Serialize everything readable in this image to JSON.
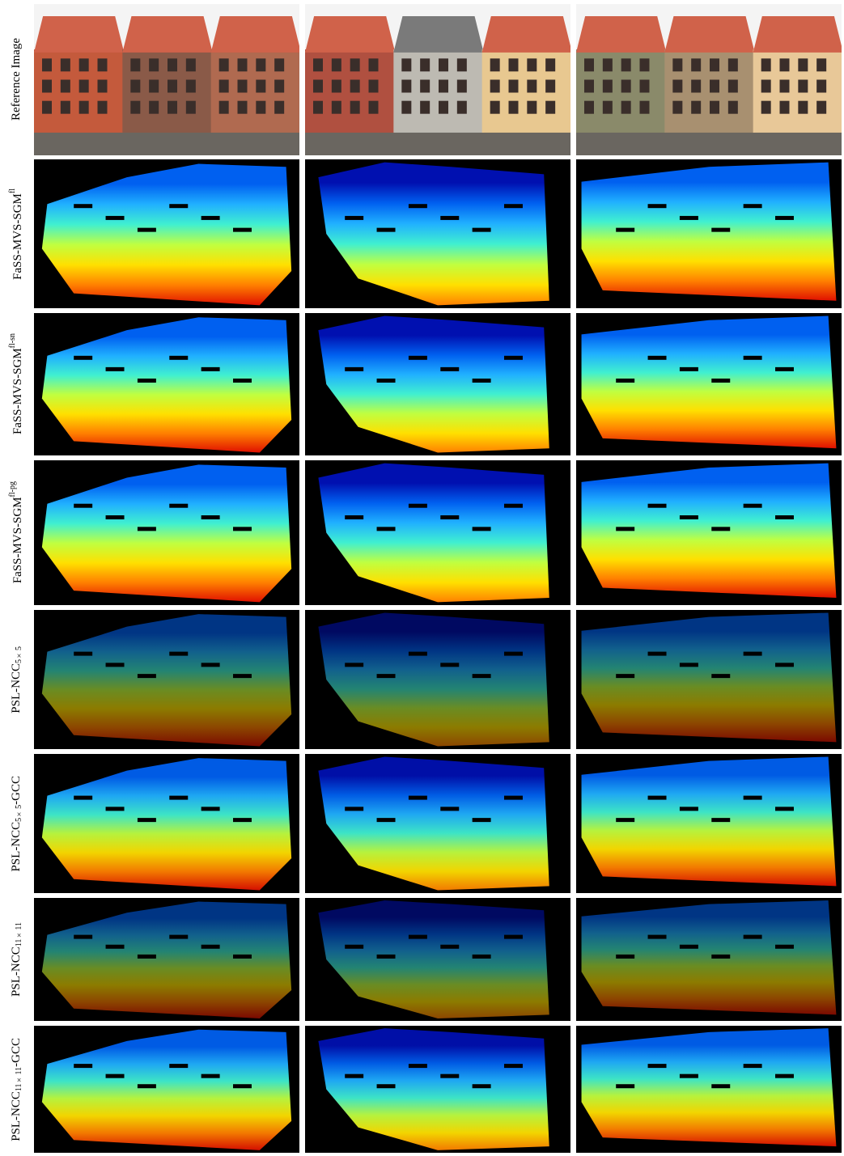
{
  "rows": [
    {
      "label": "Reference Image"
    },
    {
      "label": "FaSS-MVS-SGM",
      "sup": "fl"
    },
    {
      "label": "FaSS-MVS-SGM",
      "sup": "fl-sn"
    },
    {
      "label": "FaSS-MVS-SGM",
      "sup": "fl-pg"
    },
    {
      "label": "PSL-NCC",
      "sub": "5×5"
    },
    {
      "label": "PSL-NCC",
      "sub": "5×5",
      "suffix": "-GCC"
    },
    {
      "label": "PSL-NCC",
      "sub": "11×11"
    },
    {
      "label": "PSL-NCC",
      "sub": "11×11",
      "suffix": "-GCC"
    }
  ]
}
